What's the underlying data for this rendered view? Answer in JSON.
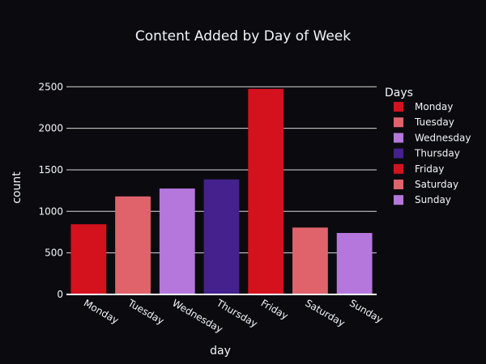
{
  "chart_data": {
    "type": "bar",
    "title": "Content Added by Day of Week",
    "xlabel": "day",
    "ylabel": "count",
    "categories": [
      "Monday",
      "Tuesday",
      "Wednesday",
      "Thursday",
      "Friday",
      "Saturday",
      "Sunday"
    ],
    "values": [
      845,
      1180,
      1275,
      1385,
      2475,
      805,
      740
    ],
    "ylim": [
      0,
      2600
    ],
    "yticks": [
      0,
      500,
      1000,
      1500,
      2000,
      2500
    ],
    "ytick_labels": [
      "0",
      "500",
      "1000",
      "1500",
      "2000",
      "2500"
    ],
    "grid": true,
    "legend": {
      "title": "Days",
      "position": "right",
      "entries": [
        "Monday",
        "Tuesday",
        "Wednesday",
        "Thursday",
        "Friday",
        "Saturday",
        "Sunday"
      ]
    },
    "colors": [
      "#d4121e",
      "#e0636b",
      "#b577dc",
      "#44218d",
      "#d4121e",
      "#e0636b",
      "#b577dc"
    ],
    "background": "#0b0b0f",
    "grid_color": "#d9d9d9"
  }
}
